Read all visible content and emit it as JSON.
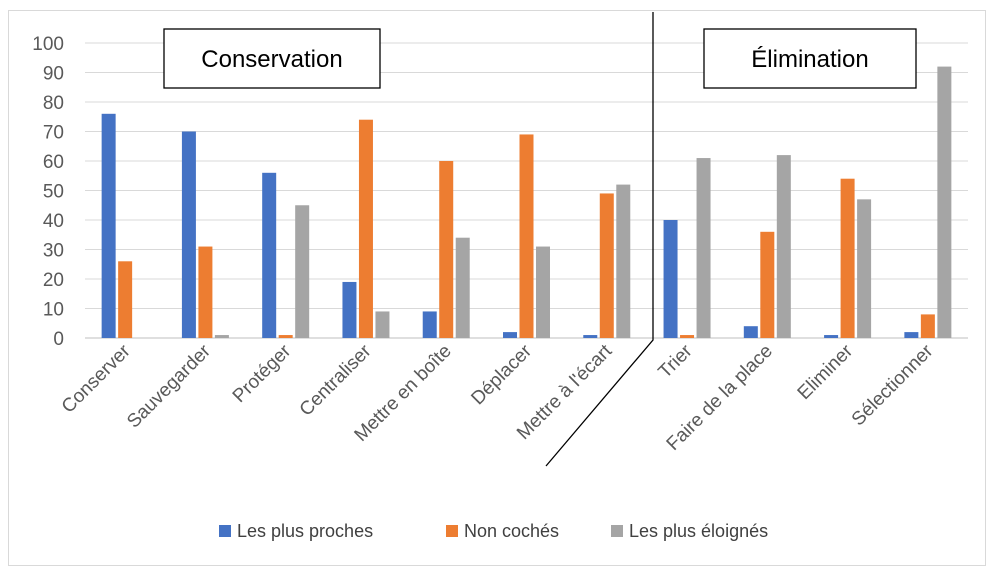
{
  "chart_data": {
    "type": "bar",
    "categories": [
      "Conserver",
      "Sauvegarder",
      "Protéger",
      "Centraliser",
      "Mettre en boîte",
      "Déplacer",
      "Mettre à l'écart",
      "Trier",
      "Faire de la place",
      "Eliminer",
      "Sélectionner"
    ],
    "series": [
      {
        "name": "Les plus proches",
        "color": "#4472C4",
        "values": [
          76,
          70,
          56,
          19,
          9,
          2,
          1,
          40,
          4,
          1,
          2
        ]
      },
      {
        "name": "Non cochés",
        "color": "#ED7D31",
        "values": [
          26,
          31,
          1,
          74,
          60,
          69,
          49,
          1,
          36,
          54,
          8
        ]
      },
      {
        "name": "Les plus éloignés",
        "color": "#A5A5A5",
        "values": [
          0,
          1,
          45,
          9,
          34,
          31,
          52,
          61,
          62,
          47,
          92
        ]
      }
    ],
    "y_ticks": [
      "0",
      "10",
      "20",
      "30",
      "40",
      "50",
      "60",
      "70",
      "80",
      "90",
      "100"
    ],
    "ylim": [
      0,
      100
    ],
    "grid": true,
    "legend_position": "bottom",
    "sections": [
      {
        "label": "Conservation",
        "categories": [
          "Conserver",
          "Sauvegarder",
          "Protéger",
          "Centraliser",
          "Mettre en boîte",
          "Déplacer",
          "Mettre à l'écart"
        ]
      },
      {
        "label": "Élimination",
        "categories": [
          "Trier",
          "Faire de la place",
          "Eliminer",
          "Sélectionner"
        ]
      }
    ]
  }
}
